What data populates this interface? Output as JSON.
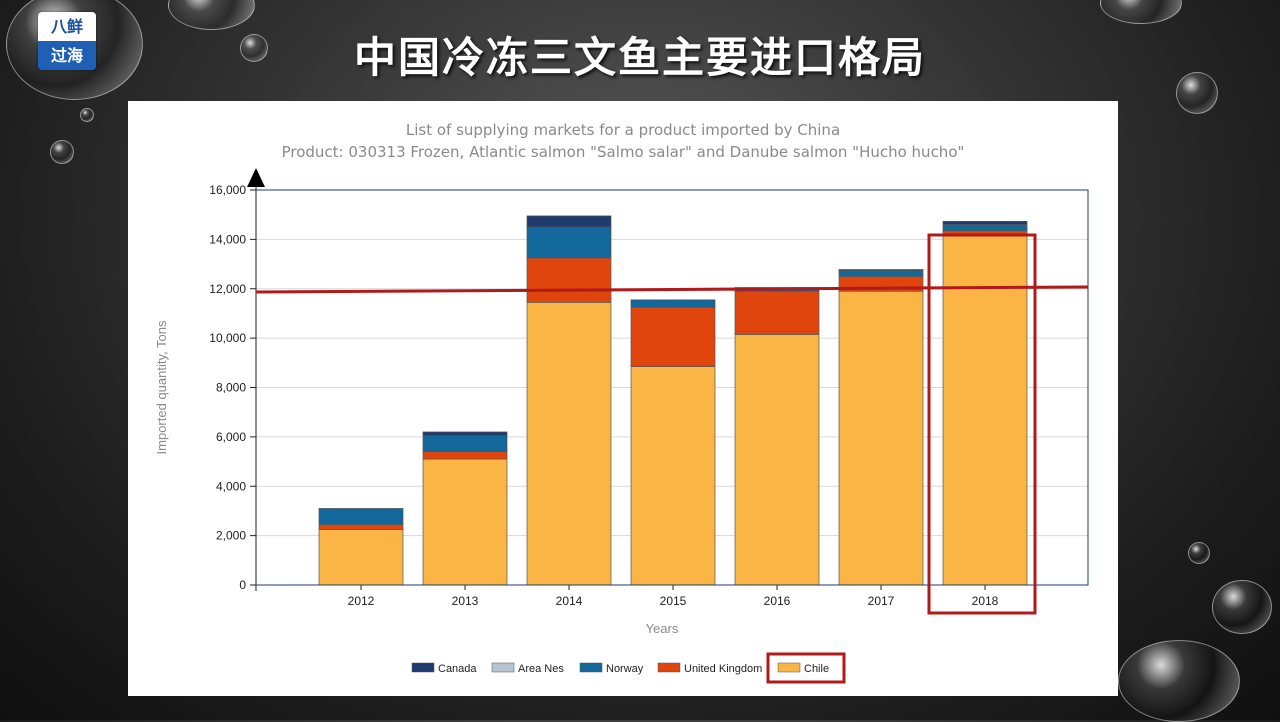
{
  "slide": {
    "title": "中国冷冻三文鱼主要进口格局",
    "logo_top": "八鲜",
    "logo_bottom": "过海"
  },
  "colors": {
    "Canada": "#1f3b6b",
    "Area Nes": "#b7c4cf",
    "Norway": "#12679b",
    "United Kingdom": "#e0450e",
    "Chile": "#fbb545",
    "highlight": "#b01a1a"
  },
  "chart_data": {
    "type": "bar",
    "stacked": true,
    "title": "List of supplying markets for a product imported by China",
    "subtitle": "Product: 030313 Frozen, Atlantic salmon \"Salmo salar\" and Danube salmon \"Hucho hucho\"",
    "xlabel": "Years",
    "ylabel": "Imported quantity, Tons",
    "ylim": [
      0,
      16000
    ],
    "yticks": [
      "0",
      "2,000",
      "4,000",
      "6,000",
      "8,000",
      "10,000",
      "12,000",
      "14,000",
      "16,000"
    ],
    "yticks_values": [
      0,
      2000,
      4000,
      6000,
      8000,
      10000,
      12000,
      14000,
      16000
    ],
    "categories": [
      "2012",
      "2013",
      "2014",
      "2015",
      "2016",
      "2017",
      "2018"
    ],
    "series": [
      {
        "name": "Chile",
        "values": [
          2250,
          5100,
          11450,
          8850,
          10150,
          11900,
          14150
        ]
      },
      {
        "name": "United Kingdom",
        "values": [
          200,
          300,
          1800,
          2400,
          1750,
          600,
          200
        ]
      },
      {
        "name": "Norway",
        "values": [
          650,
          650,
          1250,
          300,
          80,
          250,
          250
        ]
      },
      {
        "name": "Area Nes",
        "values": [
          0,
          0,
          0,
          0,
          0,
          0,
          0
        ]
      },
      {
        "name": "Canada",
        "values": [
          0,
          150,
          450,
          0,
          70,
          30,
          130
        ]
      }
    ],
    "legend": [
      "Canada",
      "Area Nes",
      "Norway",
      "United Kingdom",
      "Chile"
    ],
    "legend_position": "bottom",
    "grid": true,
    "reference_line_value": 11950,
    "highlight_category": "2018",
    "highlight_legend": "Chile"
  }
}
